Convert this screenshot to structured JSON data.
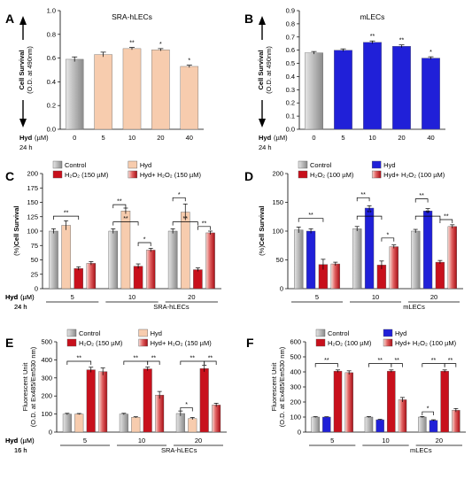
{
  "colors": {
    "control": "#b8b8b8",
    "sra_hyd": "#f7ccae",
    "mlec_hyd": "#2020d8",
    "h2o2": "#c8101c",
    "combo_light": "#f4d0c8",
    "combo_dark": "#b01018"
  },
  "chart_data": [
    {
      "panel": "A",
      "type": "bar",
      "title": "SRA-hLECs",
      "ylabel": "Cell Survival",
      "ylabel2": "(O.D. at 490nm)",
      "ylim": [
        0,
        1.0
      ],
      "yticks": [
        0.0,
        0.2,
        0.4,
        0.6,
        0.8,
        1.0
      ],
      "yticklabels": [
        "0.0",
        "0.2",
        "0.4",
        "0.6",
        "0.8",
        "1.0"
      ],
      "x_title": "Hyd",
      "x_unit": "(µM)",
      "time": "24 h",
      "categories": [
        "0",
        "5",
        "10",
        "20",
        "40"
      ],
      "values": [
        0.59,
        0.63,
        0.68,
        0.67,
        0.53
      ],
      "errors": [
        0.02,
        0.02,
        0.01,
        0.01,
        0.01
      ],
      "stars": [
        "",
        "",
        "**",
        "*",
        "*"
      ],
      "bar_colors": [
        "control",
        "sra_hyd",
        "sra_hyd",
        "sra_hyd",
        "sra_hyd"
      ]
    },
    {
      "panel": "B",
      "type": "bar",
      "title": "mLECs",
      "ylabel": "Cell Survival",
      "ylabel2": "(O.D. at 490nm)",
      "ylim": [
        0,
        0.9
      ],
      "yticks": [
        0.0,
        0.1,
        0.2,
        0.3,
        0.4,
        0.5,
        0.6,
        0.7,
        0.8,
        0.9
      ],
      "yticklabels": [
        "0.0",
        "0.1",
        "0.2",
        "0.3",
        "0.4",
        "0.5",
        "0.6",
        "0.7",
        "0.8",
        "0.9"
      ],
      "x_title": "Hyd",
      "x_unit": "(µM)",
      "time": "24 h",
      "categories": [
        "0",
        "5",
        "10",
        "20",
        "40"
      ],
      "values": [
        0.58,
        0.6,
        0.66,
        0.63,
        0.54
      ],
      "errors": [
        0.01,
        0.01,
        0.01,
        0.01,
        0.01
      ],
      "stars": [
        "",
        "",
        "**",
        "**",
        "*"
      ],
      "bar_colors": [
        "control",
        "mlec_hyd",
        "mlec_hyd",
        "mlec_hyd",
        "mlec_hyd"
      ]
    },
    {
      "panel": "C",
      "type": "bar",
      "ylabel": "Cell Survival",
      "ylabel_unit": "(%)",
      "ylim": [
        0,
        200
      ],
      "yticks": [
        0,
        25,
        50,
        75,
        100,
        125,
        150,
        175,
        200
      ],
      "yticklabels": [
        "0",
        "25",
        "50",
        "75",
        "100",
        "125",
        "150",
        "175",
        "200"
      ],
      "x_title": "Hyd",
      "x_unit": "(µM)",
      "time": "24 h",
      "group_caption": "SRA-hLECs",
      "legend": [
        {
          "label": "Control",
          "color": "control",
          "gradient": false
        },
        {
          "label": "Hyd",
          "color": "sra_hyd",
          "gradient": false
        },
        {
          "label": "H₂O₂ (150 µM)",
          "color": "h2o2",
          "gradient": false
        },
        {
          "label": "Hyd+ H₂O₂ (150 µM)",
          "color": "combo",
          "gradient": true
        }
      ],
      "series_colors": [
        "control",
        "sra_hyd",
        "h2o2",
        "combo"
      ],
      "categories": [
        "5",
        "10",
        "20"
      ],
      "series": [
        {
          "name": "Control",
          "values": [
            100,
            100,
            100
          ],
          "errors": [
            4,
            4,
            4
          ]
        },
        {
          "name": "Hyd",
          "values": [
            110,
            135,
            133
          ],
          "errors": [
            8,
            5,
            14
          ]
        },
        {
          "name": "H₂O₂ (150 µM)",
          "values": [
            35,
            39,
            33
          ],
          "errors": [
            3,
            4,
            3
          ]
        },
        {
          "name": "Hyd+ H₂O₂ (150 µM)",
          "values": [
            44,
            67,
            97
          ],
          "errors": [
            3,
            3,
            3
          ]
        }
      ],
      "brackets": [
        {
          "g": 0,
          "a": 0,
          "b": 2,
          "y": 126,
          "label": "**"
        },
        {
          "g": 1,
          "a": 0,
          "b": 1,
          "y": 146,
          "label": "**"
        },
        {
          "g": 1,
          "a": 0,
          "b": 2,
          "y": 116,
          "label": "**"
        },
        {
          "g": 1,
          "a": 2,
          "b": 3,
          "y": 80,
          "label": "*"
        },
        {
          "g": 2,
          "a": 0,
          "b": 1,
          "y": 158,
          "label": "*"
        },
        {
          "g": 2,
          "a": 0,
          "b": 2,
          "y": 116,
          "label": "**"
        },
        {
          "g": 2,
          "a": 2,
          "b": 3,
          "y": 108,
          "label": "**"
        }
      ]
    },
    {
      "panel": "D",
      "type": "bar",
      "ylabel": "Cell Survival",
      "ylabel_unit": "(%)",
      "ylim": [
        0,
        200
      ],
      "yticks": [
        0,
        50,
        100,
        150,
        200
      ],
      "yticklabels": [
        "0",
        "50",
        "100",
        "150",
        "200"
      ],
      "x_title": "Hyd",
      "x_unit": "(µM)",
      "time": "24 h",
      "group_caption": "mLECs",
      "legend": [
        {
          "label": "Control",
          "color": "control",
          "gradient": false
        },
        {
          "label": "Hyd",
          "color": "mlec_hyd",
          "gradient": false
        },
        {
          "label": "H₂O₂ (100 µM)",
          "color": "h2o2",
          "gradient": false
        },
        {
          "label": "Hyd+ H₂O₂ (100 µM)",
          "color": "combo",
          "gradient": true
        }
      ],
      "series_colors": [
        "control",
        "mlec_hyd",
        "h2o2",
        "combo"
      ],
      "categories": [
        "5",
        "10",
        "20"
      ],
      "series": [
        {
          "name": "Control",
          "values": [
            102,
            104,
            100
          ],
          "errors": [
            5,
            4,
            3
          ]
        },
        {
          "name": "Hyd",
          "values": [
            100,
            140,
            135
          ],
          "errors": [
            4,
            4,
            4
          ]
        },
        {
          "name": "H₂O₂ (100 µM)",
          "values": [
            42,
            41,
            46
          ],
          "errors": [
            9,
            7,
            3
          ]
        },
        {
          "name": "Hyd+ H₂O₂ (100 µM)",
          "values": [
            43,
            73,
            108
          ],
          "errors": [
            3,
            3,
            3
          ]
        }
      ],
      "brackets": [
        {
          "g": 0,
          "a": 0,
          "b": 2,
          "y": 122,
          "label": "**"
        },
        {
          "g": 1,
          "a": 0,
          "b": 1,
          "y": 158,
          "label": "**"
        },
        {
          "g": 1,
          "a": 0,
          "b": 2,
          "y": 126,
          "label": "**"
        },
        {
          "g": 1,
          "a": 2,
          "b": 3,
          "y": 88,
          "label": "*"
        },
        {
          "g": 2,
          "a": 0,
          "b": 1,
          "y": 156,
          "label": "**"
        },
        {
          "g": 2,
          "a": 0,
          "b": 2,
          "y": 126,
          "label": "**"
        },
        {
          "g": 2,
          "a": 2,
          "b": 3,
          "y": 120,
          "label": "**"
        }
      ]
    },
    {
      "panel": "E",
      "type": "bar",
      "ylabel": "Fluorescent Unit",
      "ylabel2": "(O.D. at Ex485/Em530 nm)",
      "ylim": [
        0,
        500
      ],
      "yticks": [
        0,
        100,
        200,
        300,
        400,
        500
      ],
      "yticklabels": [
        "0",
        "100",
        "200",
        "300",
        "400",
        "500"
      ],
      "x_title": "Hyd",
      "x_unit": "(µM)",
      "time": "16 h",
      "group_caption": "SRA-hLECs",
      "legend": [
        {
          "label": "Control",
          "color": "control",
          "gradient": false
        },
        {
          "label": "Hyd",
          "color": "sra_hyd",
          "gradient": false
        },
        {
          "label": "H₂O₂ (150 µM)",
          "color": "h2o2",
          "gradient": false
        },
        {
          "label": "Hyd+ H₂O₂ (150 µM)",
          "color": "combo",
          "gradient": true
        }
      ],
      "series_colors": [
        "control",
        "sra_hyd",
        "h2o2",
        "combo"
      ],
      "categories": [
        "5",
        "10",
        "20"
      ],
      "series": [
        {
          "name": "Control",
          "values": [
            100,
            100,
            103
          ],
          "errors": [
            4,
            4,
            14
          ]
        },
        {
          "name": "Hyd",
          "values": [
            100,
            82,
            75
          ],
          "errors": [
            3,
            3,
            6
          ]
        },
        {
          "name": "H₂O₂ (150 µM)",
          "values": [
            345,
            350,
            352
          ],
          "errors": [
            14,
            10,
            18
          ]
        },
        {
          "name": "Hyd+ H₂O₂ (150 µM)",
          "values": [
            335,
            205,
            150
          ],
          "errors": [
            20,
            20,
            10
          ]
        }
      ],
      "brackets": [
        {
          "g": 0,
          "a": 0,
          "b": 2,
          "y": 392,
          "label": "**"
        },
        {
          "g": 1,
          "a": 0,
          "b": 2,
          "y": 392,
          "label": "**"
        },
        {
          "g": 1,
          "a": 2,
          "b": 3,
          "y": 392,
          "label": "**"
        },
        {
          "g": 2,
          "a": 0,
          "b": 1,
          "y": 135,
          "label": "*"
        },
        {
          "g": 2,
          "a": 0,
          "b": 2,
          "y": 392,
          "label": "**"
        },
        {
          "g": 2,
          "a": 2,
          "b": 3,
          "y": 392,
          "label": "**"
        }
      ]
    },
    {
      "panel": "F",
      "type": "bar",
      "ylabel": "Fluorescent Unit",
      "ylabel2": "(O.D. at Ex485/Em530 nm)",
      "ylim": [
        0,
        600
      ],
      "yticks": [
        0,
        100,
        200,
        300,
        400,
        500,
        600
      ],
      "yticklabels": [
        "0",
        "100",
        "200",
        "300",
        "400",
        "500",
        "600"
      ],
      "x_title": "Hyd",
      "x_unit": "(µM)",
      "time": "16 h",
      "group_caption": "mLECs",
      "legend": [
        {
          "label": "Control",
          "color": "control",
          "gradient": false
        },
        {
          "label": "Hyd",
          "color": "mlec_hyd",
          "gradient": false
        },
        {
          "label": "H₂O₂ (100 µM)",
          "color": "h2o2",
          "gradient": false
        },
        {
          "label": "Hyd+ H₂O₂ (100 µM)",
          "color": "combo",
          "gradient": true
        }
      ],
      "series_colors": [
        "control",
        "mlec_hyd",
        "h2o2",
        "combo"
      ],
      "categories": [
        "5",
        "10",
        "20"
      ],
      "series": [
        {
          "name": "Control",
          "values": [
            100,
            100,
            100
          ],
          "errors": [
            3,
            3,
            4
          ]
        },
        {
          "name": "Hyd",
          "values": [
            100,
            82,
            78
          ],
          "errors": [
            2,
            3,
            4
          ]
        },
        {
          "name": "H₂O₂ (100 µM)",
          "values": [
            405,
            405,
            405
          ],
          "errors": [
            8,
            8,
            8
          ]
        },
        {
          "name": "Hyd+ H₂O₂ (100 µM)",
          "values": [
            395,
            215,
            145
          ],
          "errors": [
            12,
            15,
            12
          ]
        }
      ],
      "brackets": [
        {
          "g": 0,
          "a": 0,
          "b": 2,
          "y": 455,
          "label": "**"
        },
        {
          "g": 1,
          "a": 0,
          "b": 2,
          "y": 455,
          "label": "**"
        },
        {
          "g": 1,
          "a": 2,
          "b": 3,
          "y": 455,
          "label": "**"
        },
        {
          "g": 2,
          "a": 0,
          "b": 1,
          "y": 135,
          "label": "*"
        },
        {
          "g": 2,
          "a": 0,
          "b": 2,
          "y": 455,
          "label": "**"
        },
        {
          "g": 2,
          "a": 2,
          "b": 3,
          "y": 455,
          "label": "**"
        }
      ]
    }
  ]
}
